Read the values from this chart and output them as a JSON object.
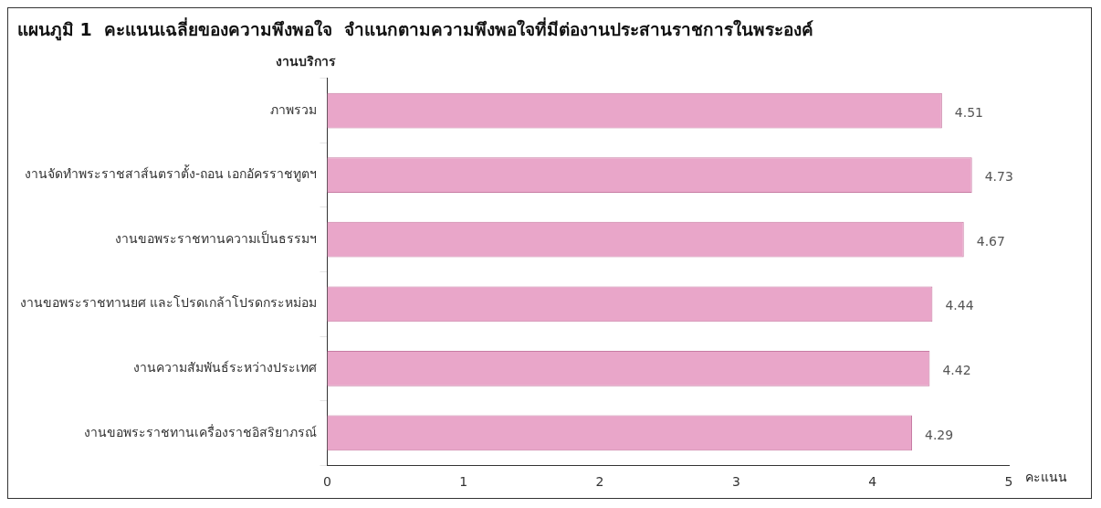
{
  "chart_data": {
    "type": "bar",
    "orientation": "horizontal",
    "title": "แผนภูมิ 1  คะแนนเฉลี่ยของความพึงพอใจ  จำแนกตามความพึงพอใจที่มีต่องานประสานราชการในพระองค์",
    "ylabel": "งานบริการ",
    "xlabel": "คะแนน",
    "categories": [
      "ภาพรวม",
      "งานจัดทำพระราชสาส์นตราตั้ง-ถอน เอกอัครราชทูตฯ",
      "งานขอพระราชทานความเป็นธรรมฯ",
      "งานขอพระราชทานยศ และโปรดเกล้าโปรดกระหม่อม",
      "งานความสัมพันธ์ระหว่างประเทศ",
      "งานขอพระราชทานเครื่องราชอิสริยาภรณ์"
    ],
    "values": [
      4.51,
      4.73,
      4.67,
      4.44,
      4.42,
      4.29
    ],
    "color": "#e9a6c9",
    "xlim": [
      0,
      5
    ],
    "xticks": [
      0,
      1,
      2,
      3,
      4,
      5
    ],
    "grid": false,
    "legend": false,
    "data_labels": true
  }
}
